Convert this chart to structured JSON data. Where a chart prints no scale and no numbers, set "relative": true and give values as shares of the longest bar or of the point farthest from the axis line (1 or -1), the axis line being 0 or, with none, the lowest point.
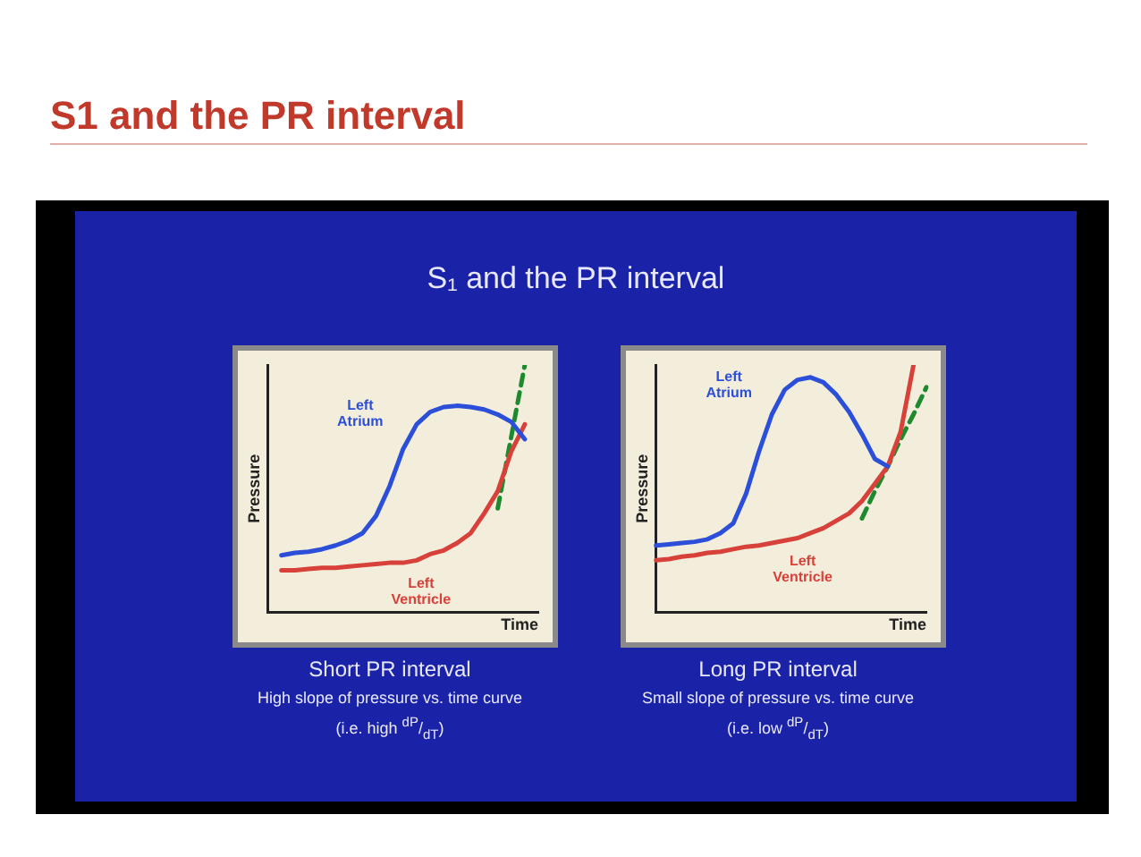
{
  "chart_data": [
    {
      "type": "line",
      "relative": true,
      "title": "S1 and the PR interval",
      "subtitle": "S₁ and the PR interval",
      "xlabel": "Time",
      "ylabel": "Pressure",
      "legend": false,
      "grid": false,
      "tick_labels": false,
      "marker": "none",
      "annotations": [
        "Short PR interval",
        "High slope of pressure vs. time curve",
        "(i.e. high $^{dP}$/$_{dT}$)"
      ],
      "categories": [
        null,
        null,
        null,
        null,
        null,
        null,
        null,
        null,
        null,
        null,
        null,
        null,
        null,
        null,
        null,
        null,
        null,
        null,
        null,
        null,
        null
      ],
      "series": [
        {
          "name": "Left Atrium",
          "color": "#2b4fd8",
          "values": [
            null,
            0.23,
            0.24,
            0.245,
            0.255,
            0.27,
            0.29,
            0.32,
            0.39,
            0.51,
            0.66,
            0.76,
            0.81,
            0.83,
            0.835,
            0.83,
            0.82,
            0.8,
            0.77,
            0.7,
            null
          ]
        },
        {
          "name": "Left Ventricle",
          "color": "#d8403a",
          "values": [
            null,
            0.17,
            0.17,
            0.175,
            0.18,
            0.18,
            0.185,
            0.19,
            0.195,
            0.2,
            0.2,
            0.21,
            0.235,
            0.25,
            0.28,
            0.32,
            0.4,
            0.49,
            0.65,
            0.76,
            null
          ]
        },
        {
          "color": "#1e8a2e",
          "line_style": "dashed",
          "values": [
            null,
            null,
            null,
            null,
            null,
            null,
            null,
            null,
            null,
            null,
            null,
            null,
            null,
            null,
            null,
            null,
            null,
            0.42,
            0.71,
            1,
            null
          ]
        }
      ]
    },
    {
      "type": "line",
      "relative": true,
      "xlabel": "Time",
      "ylabel": "Pressure",
      "legend": false,
      "grid": false,
      "tick_labels": false,
      "marker": "none",
      "annotations": [
        "Long PR interval",
        "Small slope of pressure vs. time curve",
        "(i.e. low $^{dP}$/$_{dT}$)"
      ],
      "categories": [
        null,
        null,
        null,
        null,
        null,
        null,
        null,
        null,
        null,
        null,
        null,
        null,
        null,
        null,
        null,
        null,
        null,
        null,
        null,
        null,
        null,
        null
      ],
      "series": [
        {
          "name": "Left Atrium",
          "color": "#2b4fd8",
          "values": [
            0.27,
            0.275,
            0.28,
            0.285,
            0.295,
            0.32,
            0.36,
            0.48,
            0.65,
            0.8,
            0.9,
            0.94,
            0.95,
            0.93,
            0.88,
            0.81,
            0.72,
            0.62,
            0.59,
            null,
            null,
            null
          ]
        },
        {
          "name": "Left Ventricle",
          "color": "#d8403a",
          "values": [
            0.21,
            0.215,
            0.225,
            0.23,
            0.24,
            0.245,
            0.255,
            0.265,
            0.27,
            0.28,
            0.29,
            0.3,
            0.32,
            0.34,
            0.37,
            0.4,
            0.45,
            0.52,
            0.59,
            0.73,
            1,
            null
          ]
        },
        {
          "color": "#1e8a2e",
          "line_style": "dashed",
          "values": [
            null,
            null,
            null,
            null,
            null,
            null,
            null,
            null,
            null,
            null,
            null,
            null,
            null,
            null,
            null,
            null,
            0.38,
            0.49,
            0.59,
            0.7,
            0.8,
            0.91
          ]
        }
      ]
    }
  ]
}
